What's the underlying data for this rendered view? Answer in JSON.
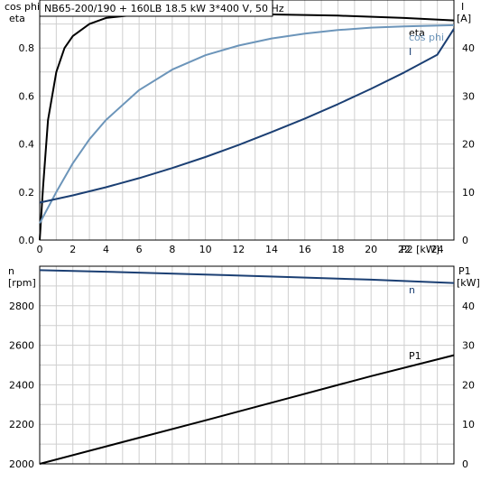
{
  "title": "NB65-200/190 + 160LB    18.5 kW    3*400 V, 50 Hz",
  "colors": {
    "dark": "#1b3f73",
    "light": "#6c95ba",
    "black": "#000000",
    "grid": "#cfcfcf"
  },
  "chart_data": [
    {
      "type": "line",
      "x_label": "P2 [kW]",
      "x_ticks": [
        0,
        2,
        4,
        6,
        8,
        10,
        12,
        14,
        16,
        18,
        20,
        22,
        24
      ],
      "xlim": [
        0,
        25
      ],
      "left_axis": {
        "label_line1": "cos phi",
        "label_line2": "eta",
        "ylim": [
          0,
          1.0
        ],
        "ticks": [
          0.0,
          0.2,
          0.4,
          0.6,
          0.8
        ]
      },
      "right_axis": {
        "label_line1": "I",
        "label_line2": "[A]",
        "ylim": [
          0,
          50
        ],
        "ticks": [
          0,
          10,
          20,
          30,
          40
        ]
      },
      "series": [
        {
          "name": "eta",
          "axis": "left",
          "color": "black",
          "points": [
            [
              0,
              0
            ],
            [
              0.2,
              0.22
            ],
            [
              0.5,
              0.5
            ],
            [
              1,
              0.7
            ],
            [
              1.5,
              0.8
            ],
            [
              2,
              0.85
            ],
            [
              3,
              0.9
            ],
            [
              4,
              0.925
            ],
            [
              6,
              0.94
            ],
            [
              8,
              0.945
            ],
            [
              10,
              0.945
            ],
            [
              14,
              0.94
            ],
            [
              18,
              0.935
            ],
            [
              22,
              0.925
            ],
            [
              25,
              0.915
            ]
          ]
        },
        {
          "name": "cos phi",
          "axis": "left",
          "color": "light",
          "points": [
            [
              0,
              0.07
            ],
            [
              1,
              0.2
            ],
            [
              2,
              0.32
            ],
            [
              3,
              0.42
            ],
            [
              4,
              0.5
            ],
            [
              6,
              0.625
            ],
            [
              8,
              0.71
            ],
            [
              10,
              0.77
            ],
            [
              12,
              0.81
            ],
            [
              14,
              0.84
            ],
            [
              16,
              0.86
            ],
            [
              18,
              0.875
            ],
            [
              20,
              0.885
            ],
            [
              22,
              0.89
            ],
            [
              25,
              0.895
            ]
          ]
        },
        {
          "name": "I",
          "axis": "right",
          "color": "dark",
          "points": [
            [
              0,
              7.8
            ],
            [
              2,
              9.3
            ],
            [
              4,
              11.0
            ],
            [
              6,
              12.9
            ],
            [
              8,
              15.0
            ],
            [
              10,
              17.3
            ],
            [
              12,
              19.8
            ],
            [
              14,
              22.5
            ],
            [
              16,
              25.3
            ],
            [
              18,
              28.3
            ],
            [
              20,
              31.5
            ],
            [
              22,
              34.9
            ],
            [
              24,
              38.6
            ],
            [
              25,
              44.0
            ]
          ]
        }
      ]
    },
    {
      "type": "line",
      "left_axis": {
        "label_line1": "n",
        "label_line2": "[rpm]",
        "ylim": [
          2000,
          3000
        ],
        "ticks": [
          2000,
          2200,
          2400,
          2600,
          2800
        ]
      },
      "right_axis": {
        "label_line1": "P1",
        "label_line2": "[kW]",
        "ylim": [
          0,
          50
        ],
        "ticks": [
          0,
          10,
          20,
          30,
          40
        ]
      },
      "series": [
        {
          "name": "n",
          "axis": "left",
          "color": "dark",
          "points": [
            [
              0,
              2980
            ],
            [
              5,
              2970
            ],
            [
              10,
              2958
            ],
            [
              15,
              2945
            ],
            [
              20,
              2932
            ],
            [
              25,
              2915
            ]
          ]
        },
        {
          "name": "P1",
          "axis": "right",
          "color": "black",
          "points": [
            [
              0,
              0
            ],
            [
              5,
              5.5
            ],
            [
              10,
              11
            ],
            [
              15,
              16.6
            ],
            [
              20,
              22.2
            ],
            [
              25,
              27.5
            ]
          ]
        }
      ]
    }
  ]
}
